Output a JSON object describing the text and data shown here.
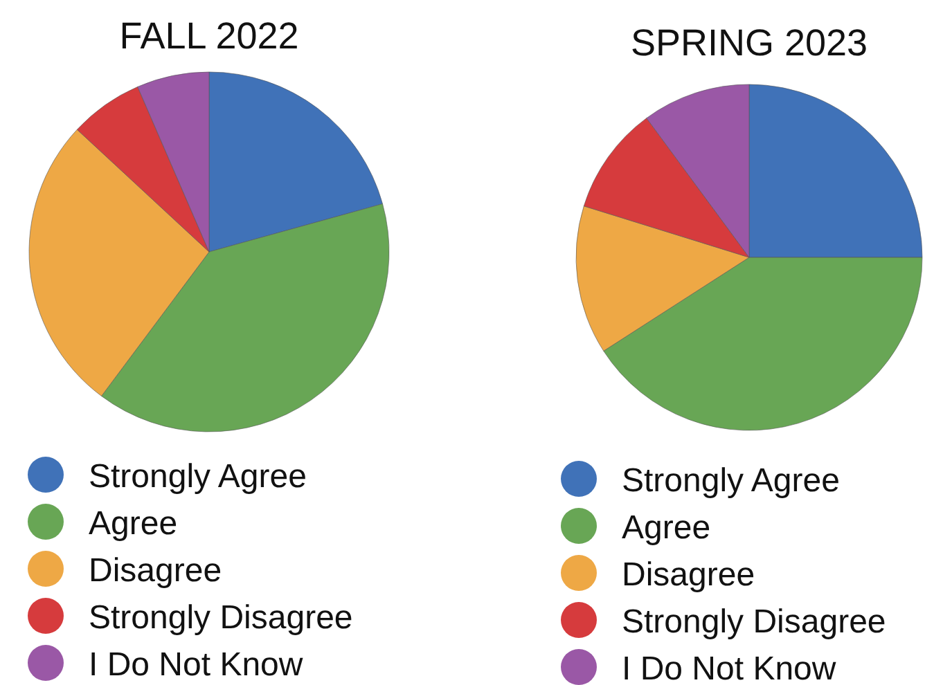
{
  "chart_data": [
    {
      "type": "pie",
      "title": "FALL 2022",
      "categories": [
        "Strongly Agree",
        "Agree",
        "Disagree",
        "Strongly Disagree",
        "I Do Not Know"
      ],
      "values": [
        20.7,
        39.5,
        26.7,
        6.6,
        6.5
      ],
      "colors": [
        "#4072b8",
        "#68a655",
        "#eea845",
        "#d63b3d",
        "#9a58a6"
      ],
      "legend": "bottom"
    },
    {
      "type": "pie",
      "title": "SPRING 2023",
      "categories": [
        "Strongly Agree",
        "Agree",
        "Disagree",
        "Strongly Disagree",
        "I Do Not Know"
      ],
      "values": [
        25,
        40.9,
        13.9,
        10.1,
        10.1
      ],
      "colors": [
        "#4072b8",
        "#68a655",
        "#eea845",
        "#d63b3d",
        "#9a58a6"
      ],
      "legend": "bottom"
    }
  ]
}
